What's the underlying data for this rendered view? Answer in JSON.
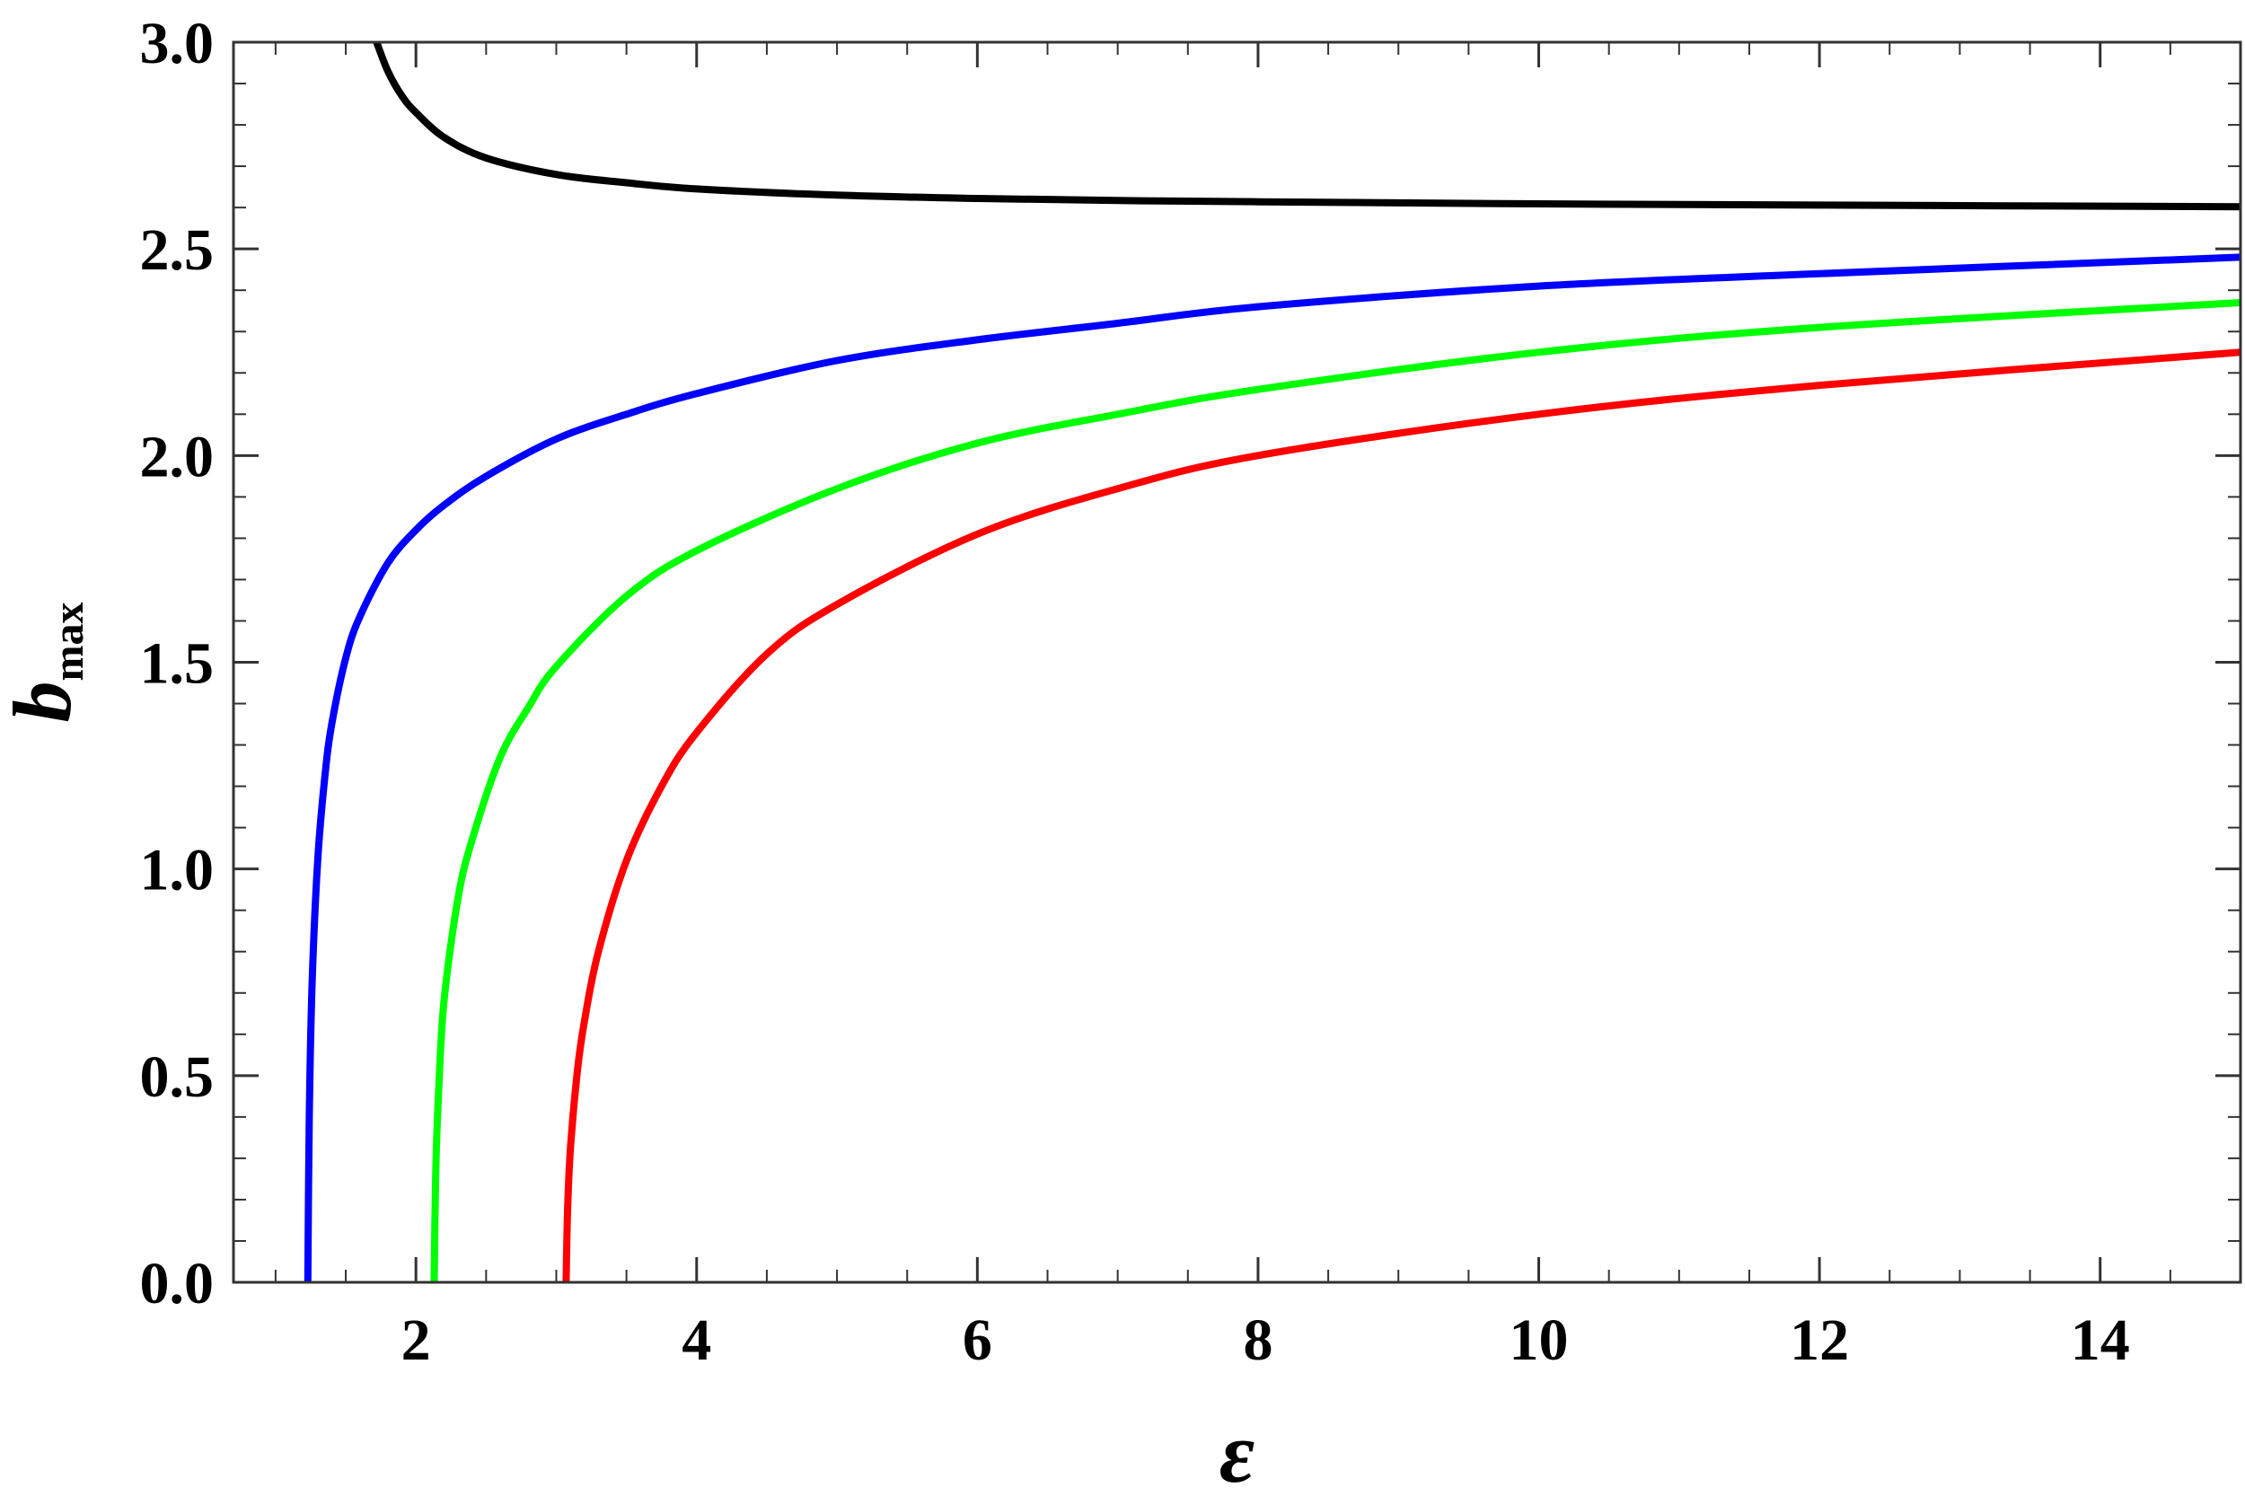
{
  "chart_data": {
    "type": "line",
    "xlabel": "ε",
    "ylabel": "b",
    "ylabel_sub": "max",
    "xlim": [
      0.7,
      15
    ],
    "ylim": [
      0,
      3
    ],
    "x_ticks": [
      2,
      4,
      6,
      8,
      10,
      12,
      14
    ],
    "x_tick_labels": [
      "2",
      "4",
      "6",
      "8",
      "10",
      "12",
      "14"
    ],
    "y_ticks": [
      0,
      0.5,
      1,
      1.5,
      2,
      2.5,
      3
    ],
    "y_tick_labels": [
      "0.0",
      "0.5",
      "1.0",
      "1.5",
      "2.0",
      "2.5",
      "3.0"
    ],
    "grid": false,
    "series": [
      {
        "color": "#000000",
        "x": [
          1.72,
          1.8,
          1.9,
          2.0,
          2.2,
          2.5,
          3.0,
          3.5,
          4.0,
          5.0,
          6.0,
          7.0,
          8.0,
          10.0,
          12.0,
          15.0
        ],
        "y": [
          3.0,
          2.93,
          2.87,
          2.83,
          2.77,
          2.72,
          2.68,
          2.66,
          2.645,
          2.63,
          2.622,
          2.617,
          2.614,
          2.609,
          2.606,
          2.602
        ]
      },
      {
        "color": "#0000ff",
        "x": [
          1.23,
          1.24,
          1.26,
          1.3,
          1.35,
          1.4,
          1.5,
          1.6,
          1.8,
          2.0,
          2.2,
          2.5,
          3.0,
          3.5,
          4.0,
          5.0,
          6.0,
          7.0,
          8.0,
          10.0,
          12.0,
          15.0
        ],
        "y": [
          0.0,
          0.4,
          0.72,
          1.02,
          1.22,
          1.35,
          1.51,
          1.61,
          1.74,
          1.82,
          1.88,
          1.95,
          2.04,
          2.1,
          2.15,
          2.23,
          2.28,
          2.32,
          2.36,
          2.41,
          2.44,
          2.48
        ]
      },
      {
        "color": "#00ff00",
        "x": [
          2.13,
          2.14,
          2.16,
          2.2,
          2.3,
          2.4,
          2.6,
          2.8,
          3.0,
          3.5,
          4.0,
          5.0,
          6.0,
          7.0,
          8.0,
          10.0,
          12.0,
          15.0
        ],
        "y": [
          0.0,
          0.25,
          0.45,
          0.68,
          0.93,
          1.07,
          1.27,
          1.39,
          1.49,
          1.66,
          1.77,
          1.92,
          2.03,
          2.1,
          2.16,
          2.25,
          2.31,
          2.37
        ]
      },
      {
        "color": "#ff0000",
        "x": [
          3.07,
          3.08,
          3.1,
          3.15,
          3.2,
          3.3,
          3.5,
          3.75,
          4.0,
          4.5,
          5.0,
          6.0,
          7.0,
          8.0,
          10.0,
          12.0,
          15.0
        ],
        "y": [
          0.0,
          0.17,
          0.32,
          0.51,
          0.63,
          0.8,
          1.02,
          1.2,
          1.33,
          1.52,
          1.64,
          1.81,
          1.92,
          2.0,
          2.1,
          2.17,
          2.25
        ]
      }
    ]
  }
}
